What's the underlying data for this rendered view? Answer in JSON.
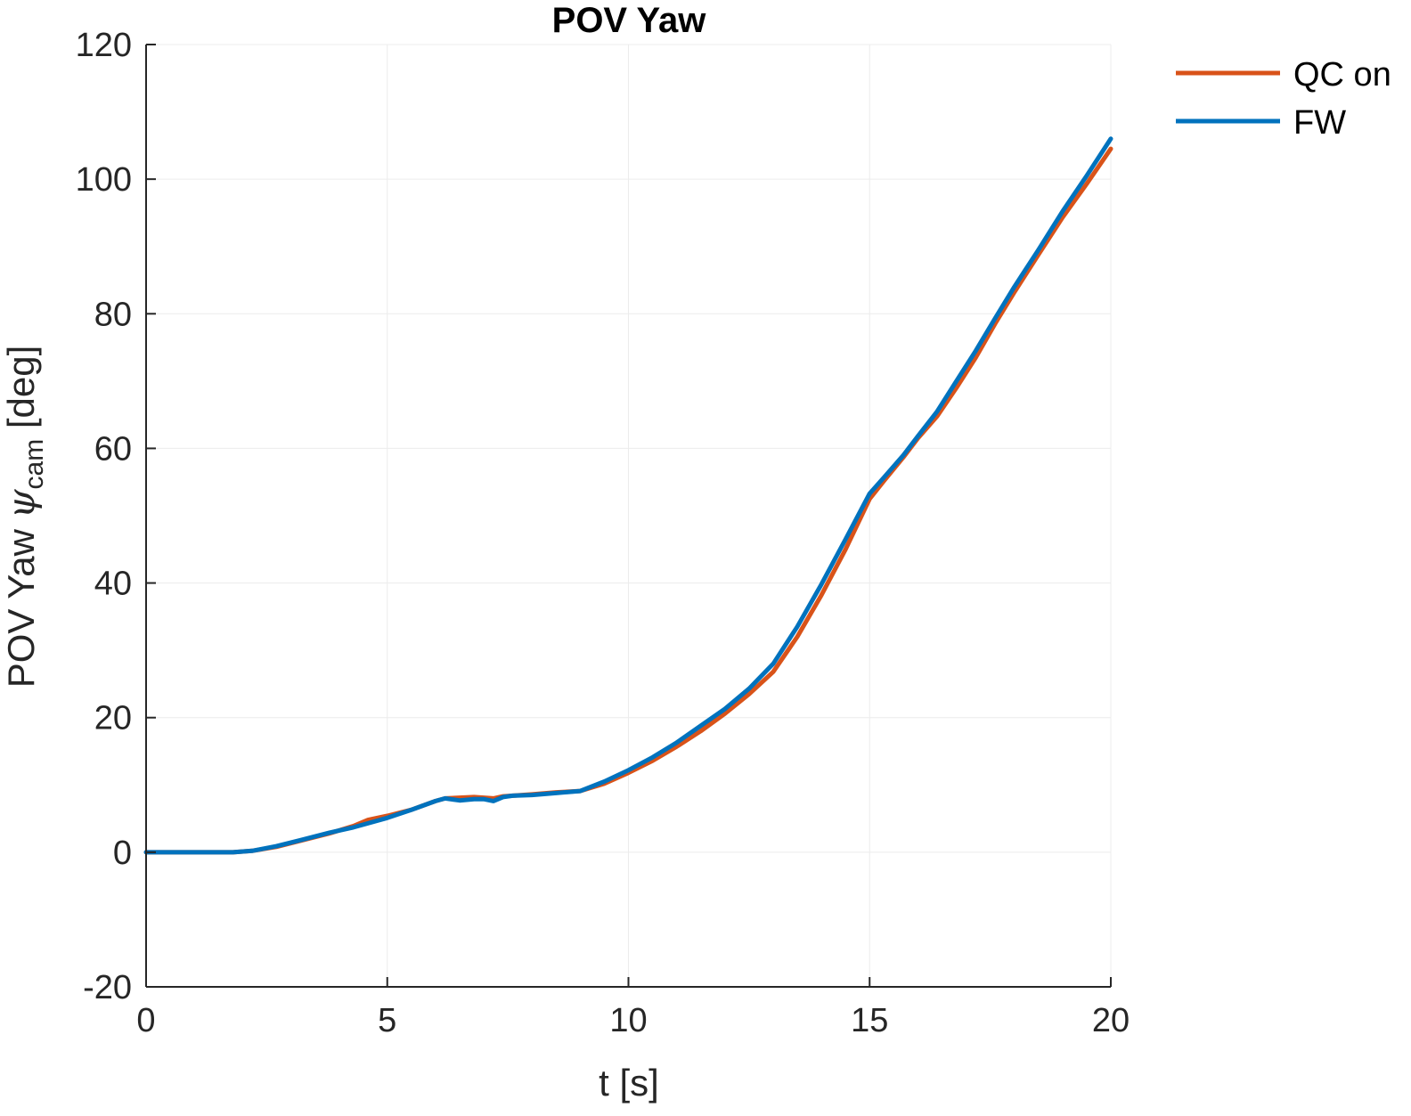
{
  "colors": {
    "qc_on": "#D95319",
    "fw": "#0072BD",
    "axis": "#262626",
    "grid": "#ececec"
  },
  "chart_data": {
    "type": "line",
    "title": "POV Yaw",
    "xlabel": "t [s]",
    "ylabel": {
      "prefix": "POV Yaw ",
      "symbol": "ψ",
      "subscript": "cam",
      "suffix": " [deg]"
    },
    "xlim": [
      0,
      20
    ],
    "ylim": [
      -20,
      120
    ],
    "xticks": [
      0,
      5,
      10,
      15,
      20
    ],
    "yticks": [
      -20,
      0,
      20,
      40,
      60,
      80,
      100,
      120
    ],
    "grid": true,
    "legend_position": "top-right outside",
    "series": [
      {
        "name": "QC on",
        "color": "#D95319",
        "x": [
          0,
          1,
          1.8,
          2.2,
          2.7,
          3.2,
          3.8,
          4.3,
          4.6,
          5.0,
          5.5,
          6.0,
          6.2,
          6.5,
          6.8,
          7.0,
          7.2,
          7.4,
          7.6,
          8.0,
          8.5,
          9.0,
          9.5,
          10.0,
          10.5,
          11.0,
          11.5,
          12.0,
          12.5,
          13.0,
          13.5,
          14.0,
          14.5,
          15.0,
          15.3,
          15.7,
          16.0,
          16.4,
          16.8,
          17.2,
          17.6,
          18.0,
          18.5,
          19.0,
          19.5,
          20.0
        ],
        "y": [
          0,
          0,
          0,
          0.2,
          0.8,
          1.7,
          2.8,
          3.9,
          4.8,
          5.4,
          6.3,
          7.6,
          8.0,
          8.1,
          8.2,
          8.1,
          8.0,
          8.3,
          8.4,
          8.6,
          8.9,
          9.1,
          10.2,
          11.8,
          13.6,
          15.7,
          18.0,
          20.6,
          23.5,
          26.8,
          32.0,
          38.2,
          45.0,
          52.5,
          55.2,
          58.7,
          61.5,
          64.8,
          69.0,
          73.5,
          78.5,
          83.2,
          88.8,
          94.3,
          99.3,
          104.5
        ]
      },
      {
        "name": "FW",
        "color": "#0072BD",
        "x": [
          0,
          1,
          1.8,
          2.2,
          2.7,
          3.2,
          3.8,
          4.3,
          4.6,
          5.0,
          5.5,
          6.0,
          6.2,
          6.5,
          6.8,
          7.0,
          7.2,
          7.4,
          7.6,
          8.0,
          8.5,
          9.0,
          9.5,
          10.0,
          10.5,
          11.0,
          11.5,
          12.0,
          12.5,
          13.0,
          13.5,
          14.0,
          14.5,
          15.0,
          15.3,
          15.7,
          16.0,
          16.4,
          16.8,
          17.2,
          17.6,
          18.0,
          18.5,
          19.0,
          19.5,
          20.0
        ],
        "y": [
          0,
          0,
          0,
          0.2,
          0.9,
          1.8,
          2.9,
          3.7,
          4.3,
          5.1,
          6.3,
          7.6,
          8.0,
          7.7,
          7.9,
          7.9,
          7.6,
          8.2,
          8.4,
          8.5,
          8.8,
          9.1,
          10.5,
          12.2,
          14.1,
          16.3,
          18.8,
          21.3,
          24.3,
          28.0,
          33.5,
          39.8,
          46.5,
          53.3,
          55.7,
          59.0,
          61.8,
          65.5,
          70.0,
          74.5,
          79.3,
          84.0,
          89.5,
          95.2,
          100.5,
          106.0
        ]
      }
    ]
  }
}
